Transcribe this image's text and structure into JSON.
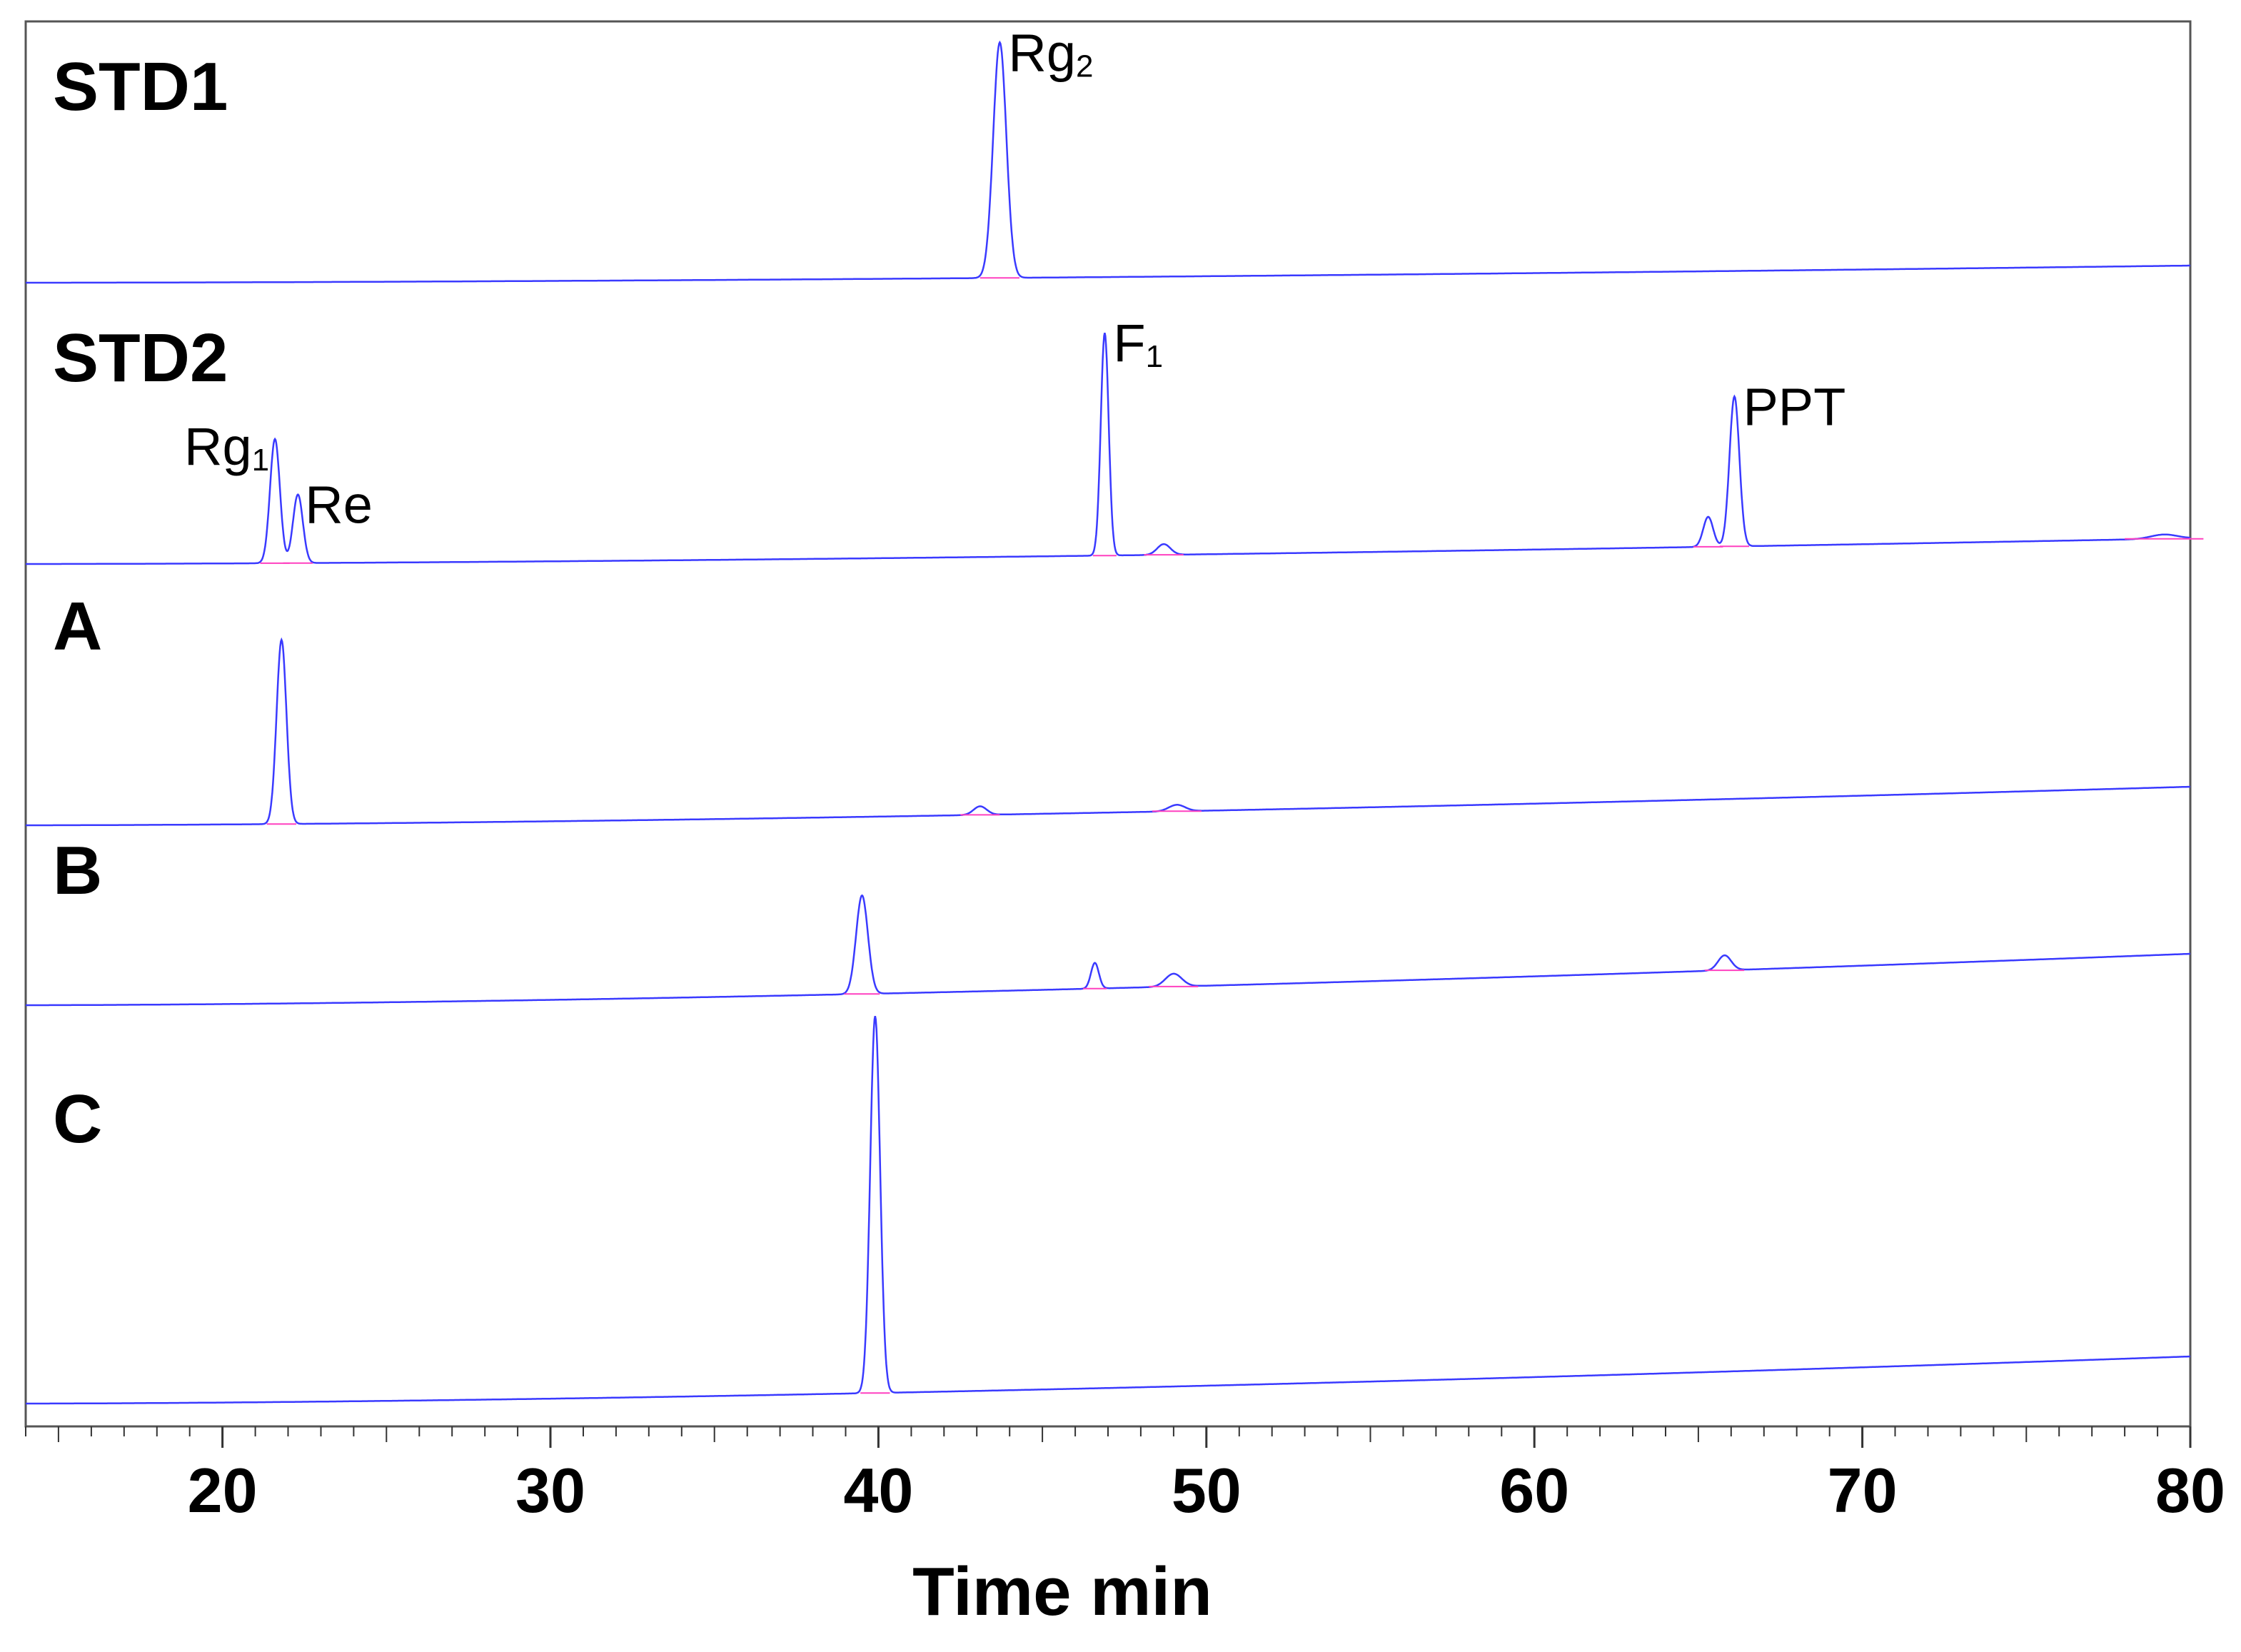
{
  "chart_data": {
    "type": "line",
    "title": "",
    "xlabel": "Time min",
    "ylabel": "",
    "xlim": [
      14,
      80
    ],
    "x_ticks": [
      "20",
      "30",
      "40",
      "50",
      "60",
      "70",
      "80"
    ],
    "grid": false,
    "line_color": "#3a3aff",
    "baseline_marker_color": "#ff40c0",
    "series": [
      {
        "name": "STD1",
        "baseline": [
          0,
          0.4
        ],
        "peaks": [
          {
            "x": 43.7,
            "height": 5.5,
            "width": 0.2,
            "label": "Rg",
            "label_sub": "2"
          }
        ]
      },
      {
        "name": "STD2",
        "baseline": [
          0,
          0.6
        ],
        "peaks": [
          {
            "x": 21.6,
            "height": 2.9,
            "width": 0.15,
            "label": "Rg",
            "label_sub": "1"
          },
          {
            "x": 22.3,
            "height": 1.6,
            "width": 0.15,
            "label": "Re",
            "label_sub": ""
          },
          {
            "x": 46.9,
            "height": 5.2,
            "width": 0.12,
            "label": "F",
            "label_sub": "1"
          },
          {
            "x": 48.7,
            "height": 0.25,
            "width": 0.2
          },
          {
            "x": 65.3,
            "height": 0.7,
            "width": 0.15
          },
          {
            "x": 66.1,
            "height": 3.5,
            "width": 0.15,
            "label": "PPT",
            "label_sub": ""
          },
          {
            "x": 79.2,
            "height": 0.1,
            "width": 0.4
          }
        ]
      },
      {
        "name": "A",
        "baseline": [
          0,
          0.9
        ],
        "peaks": [
          {
            "x": 21.8,
            "height": 4.3,
            "width": 0.15
          },
          {
            "x": 43.1,
            "height": 0.2,
            "width": 0.2
          },
          {
            "x": 49.1,
            "height": 0.15,
            "width": 0.25
          }
        ]
      },
      {
        "name": "B",
        "baseline": [
          0,
          1.2
        ],
        "peaks": [
          {
            "x": 39.5,
            "height": 2.3,
            "width": 0.18
          },
          {
            "x": 46.6,
            "height": 0.6,
            "width": 0.12
          },
          {
            "x": 49.0,
            "height": 0.3,
            "width": 0.25
          },
          {
            "x": 65.8,
            "height": 0.35,
            "width": 0.2
          }
        ]
      },
      {
        "name": "C",
        "baseline": [
          0,
          1.1
        ],
        "peaks": [
          {
            "x": 39.9,
            "height": 8.8,
            "width": 0.15
          }
        ]
      }
    ]
  }
}
